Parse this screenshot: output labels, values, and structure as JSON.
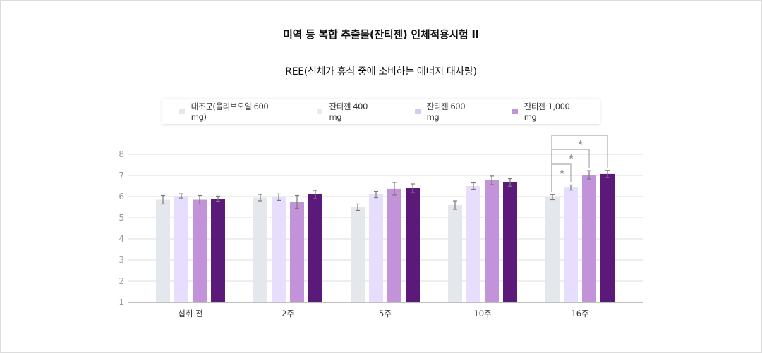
{
  "header": {
    "title": "미역 등 복합 추출물(잔티젠) 인체적용시험 II",
    "subtitle": "REE(신체가 휴식 중에 소비하는 에너지 대사량)"
  },
  "legend": {
    "items": [
      {
        "label": "대조군(올리브오일 600 mg)",
        "color": "#e4e8ec"
      },
      {
        "label": "잔티젠 400 mg",
        "color": "#ece8fc"
      },
      {
        "label": "잔티젠 600 mg",
        "color": "#d7c8f4"
      },
      {
        "label": "잔티젠 1,000 mg",
        "color": "#c193da"
      }
    ]
  },
  "colors": {
    "bars": [
      "#e4e8ec",
      "#e6defc",
      "#c393da",
      "#5b1a7a"
    ],
    "grid": "#dddddd",
    "axis": "#999999",
    "error_bar": "#7a7a7a",
    "bracket": "#aaaaaa",
    "star": "#999999"
  },
  "chart_data": {
    "type": "bar",
    "title": "REE(신체가 휴식 중에 소비하는 에너지 대사량)",
    "xlabel": "",
    "ylabel": "",
    "ylim": [
      1,
      8
    ],
    "yticks": [
      1,
      2,
      3,
      4,
      5,
      6,
      7,
      8
    ],
    "grid": true,
    "legend_position": "top",
    "categories": [
      "섭취 전",
      "2주",
      "5주",
      "10주",
      "16주"
    ],
    "series": [
      {
        "name": "대조군(올리브오일 600 mg)",
        "values": [
          5.85,
          5.95,
          5.5,
          5.6,
          5.97
        ],
        "errors": [
          0.2,
          0.15,
          0.15,
          0.2,
          0.12
        ]
      },
      {
        "name": "잔티젠 400 mg",
        "values": [
          6.03,
          5.97,
          6.1,
          6.5,
          6.43
        ],
        "errors": [
          0.1,
          0.15,
          0.15,
          0.15,
          0.12
        ]
      },
      {
        "name": "잔티젠 600 mg",
        "values": [
          5.85,
          5.75,
          6.37,
          6.77,
          7.03
        ],
        "errors": [
          0.2,
          0.3,
          0.3,
          0.2,
          0.2
        ]
      },
      {
        "name": "잔티젠 1,000 mg",
        "values": [
          5.9,
          6.1,
          6.4,
          6.67,
          7.07
        ],
        "errors": [
          0.12,
          0.2,
          0.2,
          0.18,
          0.17
        ]
      }
    ],
    "annotations": [
      {
        "category": "16주",
        "from_series": 0,
        "to_series": 1,
        "label": "*"
      },
      {
        "category": "16주",
        "from_series": 0,
        "to_series": 2,
        "label": "*"
      },
      {
        "category": "16주",
        "from_series": 0,
        "to_series": 3,
        "label": "*"
      }
    ]
  }
}
